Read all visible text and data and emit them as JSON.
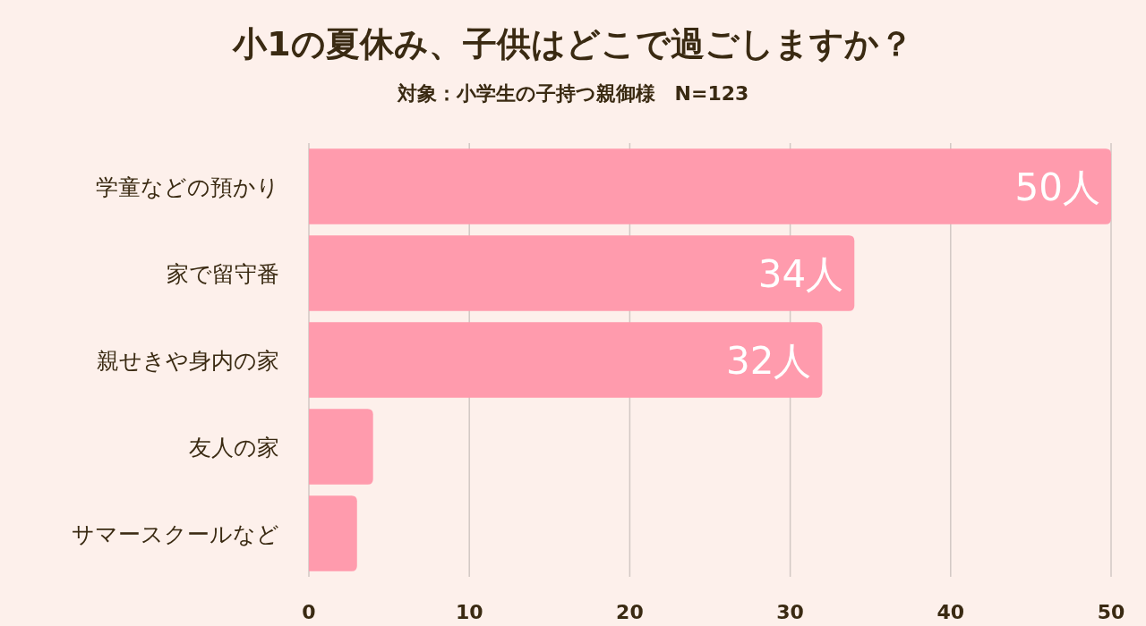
{
  "chart_data": {
    "type": "bar",
    "orientation": "horizontal",
    "title": "小1の夏休み、子供はどこで過ごしますか？",
    "subtitle": "対象：小学生の子持つ親御様　N=123",
    "categories": [
      "学童などの預かり",
      "家で留守番",
      "親せきや身内の家",
      "友人の家",
      "サマースクールなど"
    ],
    "values": [
      50,
      34,
      32,
      4,
      3
    ],
    "value_labels": [
      "50人",
      "34人",
      "32人",
      null,
      null
    ],
    "color": "#ff9bad",
    "xlim": [
      0,
      50
    ],
    "xticks": [
      0,
      10,
      20,
      30,
      40,
      50
    ],
    "grid": "x"
  }
}
